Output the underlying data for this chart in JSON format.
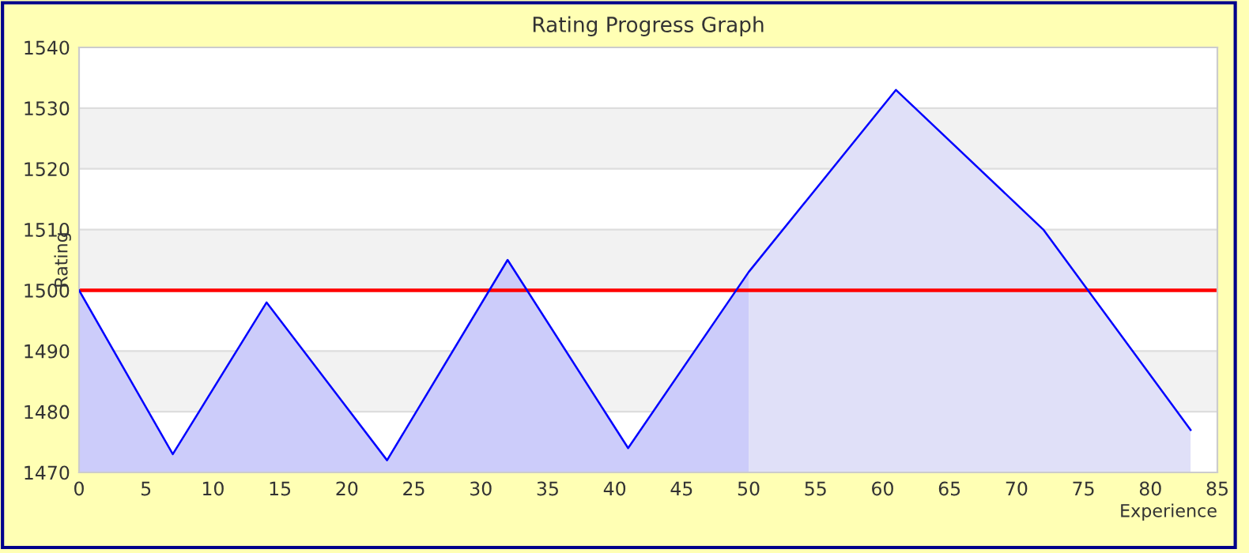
{
  "chart_data": {
    "type": "area",
    "title": "Rating Progress Graph",
    "xlabel": "Experience",
    "ylabel": "Rating",
    "series": [
      {
        "color": "#ccccfa",
        "x": [
          0,
          7,
          14,
          23,
          32,
          41,
          50
        ],
        "values": [
          1500,
          1473,
          1498,
          1472,
          1505,
          1474,
          1503
        ]
      },
      {
        "color": "#e0e0f8",
        "x": [
          50,
          61,
          72,
          83
        ],
        "values": [
          1503,
          1533,
          1510,
          1477
        ]
      },
      {
        "type": "line",
        "color": "#0000ff",
        "x": [
          0,
          7,
          14,
          23,
          32,
          41,
          50,
          61,
          72,
          83
        ],
        "values": [
          1500,
          1473,
          1498,
          1472,
          1505,
          1474,
          1503,
          1533,
          1510,
          1477
        ]
      }
    ],
    "xlim": [
      0,
      85
    ],
    "xticks": [
      0,
      5,
      10,
      15,
      20,
      25,
      30,
      35,
      40,
      45,
      50,
      55,
      60,
      65,
      70,
      75,
      80,
      85
    ],
    "ylim": [
      1470,
      1540
    ],
    "yticks": [
      1470,
      1480,
      1490,
      1500,
      1510,
      1520,
      1530,
      1540
    ],
    "ref_lines": [
      {
        "axis": "y",
        "value": 1500,
        "color": "#ff0000"
      }
    ],
    "grid": "y",
    "legend": false
  }
}
